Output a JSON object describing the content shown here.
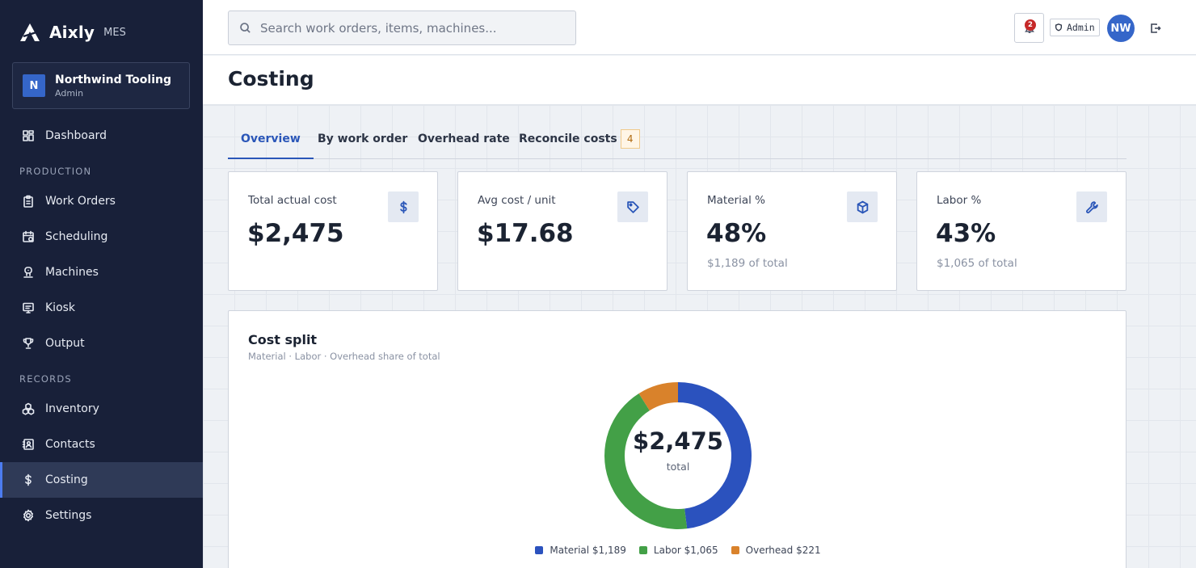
{
  "brand": {
    "name": "Aixly",
    "product": "MES"
  },
  "org": {
    "initial": "N",
    "name": "Northwind Tooling",
    "role": "Admin"
  },
  "sidebar": {
    "items_top": [
      {
        "label": "Dashboard",
        "icon": "dashboard-icon"
      }
    ],
    "sections": [
      {
        "label": "PRODUCTION",
        "items": [
          {
            "label": "Work Orders",
            "icon": "clipboard-icon"
          },
          {
            "label": "Scheduling",
            "icon": "calendar-icon"
          },
          {
            "label": "Machines",
            "icon": "machine-icon"
          },
          {
            "label": "Kiosk",
            "icon": "monitor-icon"
          },
          {
            "label": "Output",
            "icon": "trophy-icon"
          }
        ]
      },
      {
        "label": "RECORDS",
        "items": [
          {
            "label": "Inventory",
            "icon": "boxes-icon"
          },
          {
            "label": "Contacts",
            "icon": "contacts-icon"
          },
          {
            "label": "Costing",
            "icon": "dollar-icon",
            "active": true
          },
          {
            "label": "Settings",
            "icon": "gear-icon"
          }
        ]
      }
    ]
  },
  "topbar": {
    "search_placeholder": "Search work orders, items, machines...",
    "notifications_count": "2",
    "role_chip": "Admin",
    "user_initials": "NW"
  },
  "page": {
    "title": "Costing"
  },
  "tabs": [
    {
      "label": "Overview",
      "active": true
    },
    {
      "label": "By work order"
    },
    {
      "label": "Overhead rate"
    },
    {
      "label": "Reconcile costs",
      "badge": "4"
    }
  ],
  "kpis": [
    {
      "label": "Total actual cost",
      "value": "$2,475",
      "sub": "",
      "icon": "dollar-icon"
    },
    {
      "label": "Avg cost / unit",
      "value": "$17.68",
      "sub": "",
      "icon": "tag-icon"
    },
    {
      "label": "Material %",
      "value": "48%",
      "sub": "$1,189 of total",
      "icon": "box-icon"
    },
    {
      "label": "Labor %",
      "value": "43%",
      "sub": "$1,065 of total",
      "icon": "wrench-icon"
    }
  ],
  "cost_split": {
    "title": "Cost split",
    "subtitle": "Material · Labor · Overhead share of total",
    "center_value": "$2,475",
    "center_label": "total",
    "legend": [
      {
        "label": "Material $1,189"
      },
      {
        "label": "Labor $1,065"
      },
      {
        "label": "Overhead $221"
      }
    ]
  },
  "colors": {
    "material": "#2b52be",
    "labor": "#43a047",
    "overhead": "#d9822b",
    "accent": "#2a56b8",
    "sidebar": "#182039"
  },
  "chart_data": {
    "type": "pie",
    "categories": [
      "Material",
      "Labor",
      "Overhead"
    ],
    "values": [
      1189,
      1065,
      221
    ],
    "title": "Cost split"
  }
}
